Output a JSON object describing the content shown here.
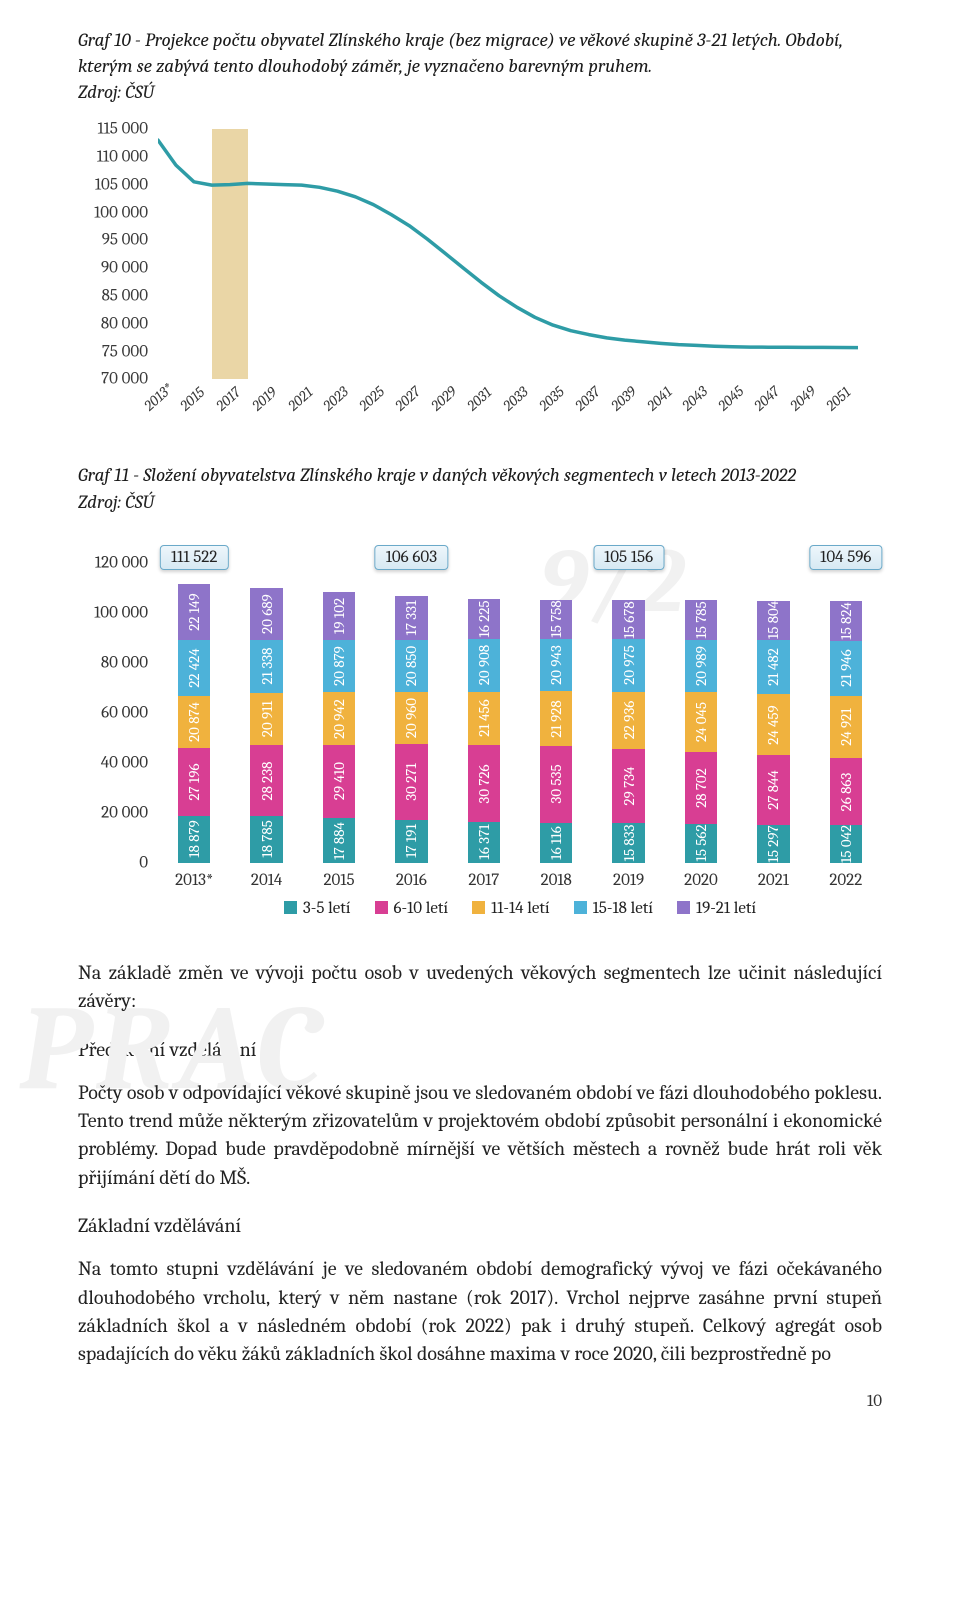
{
  "graf10": {
    "caption": "Graf 10 - Projekce počtu obyvatel Zlínského kraje (bez migrace) ve věkové skupině 3-21 letých. Období, kterým se zabývá tento dlouhodobý záměr, je vyznačeno barevným pruhem.",
    "source": "Zdroj: ČSÚ",
    "type": "line",
    "line_color": "#2e9ca6",
    "line_width": 3.5,
    "highlight_color": "#e6cf97",
    "highlight_range": [
      "2016",
      "2018"
    ],
    "ylim": [
      70000,
      115000
    ],
    "ytick_step": 5000,
    "yticks": [
      "70 000",
      "75 000",
      "80 000",
      "85 000",
      "90 000",
      "95 000",
      "100 000",
      "105 000",
      "110 000",
      "115 000"
    ],
    "xlabels": [
      "2013*",
      "2015",
      "2017",
      "2019",
      "2021",
      "2023",
      "2025",
      "2027",
      "2029",
      "2031",
      "2033",
      "2035",
      "2037",
      "2039",
      "2041",
      "2043",
      "2045",
      "2047",
      "2049",
      "2051"
    ],
    "series": [
      113000,
      108500,
      105500,
      104900,
      105000,
      105200,
      105100,
      105000,
      104900,
      104500,
      103800,
      102800,
      101400,
      99600,
      97600,
      95200,
      92600,
      90000,
      87400,
      85000,
      82900,
      81100,
      79700,
      78700,
      78000,
      77400,
      77000,
      76700,
      76400,
      76200,
      76050,
      75900,
      75800,
      75750,
      75720,
      75700,
      75690,
      75680,
      75670,
      75660
    ]
  },
  "graf11": {
    "caption": "Graf 11 - Složení obyvatelstva Zlínského kraje v daných věkových segmentech v letech 2013-2022",
    "source": "Zdroj: ČSÚ",
    "type": "stacked-bar",
    "ylim": [
      0,
      120000
    ],
    "ytick_step": 20000,
    "yticks": [
      "0",
      "20 000",
      "40 000",
      "60 000",
      "80 000",
      "100 000",
      "120 000"
    ],
    "years": [
      "2013*",
      "2014",
      "2015",
      "2016",
      "2017",
      "2018",
      "2019",
      "2020",
      "2021",
      "2022"
    ],
    "segments": [
      "3-5 letí",
      "6-10 letí",
      "11-14 letí",
      "15-18 letí",
      "19-21 letí"
    ],
    "colors": {
      "3-5 letí": "#2e9ca6",
      "6-10 letí": "#d83e93",
      "11-14 letí": "#f0b23e",
      "15-18 letí": "#4db2d9",
      "19-21 letí": "#8e74c9"
    },
    "bar_width_ratio": 0.45,
    "label_fontsize": 15,
    "data": {
      "2013*": {
        "3-5 letí": 18879,
        "6-10 letí": 27196,
        "11-14 letí": 20874,
        "15-18 letí": 22424,
        "19-21 letí": 22149
      },
      "2014": {
        "3-5 letí": 18785,
        "6-10 letí": 28238,
        "11-14 letí": 20911,
        "15-18 letí": 21338,
        "19-21 letí": 20689
      },
      "2015": {
        "3-5 letí": 17884,
        "6-10 letí": 29410,
        "11-14 letí": 20942,
        "15-18 letí": 20879,
        "19-21 letí": 19102
      },
      "2016": {
        "3-5 letí": 17191,
        "6-10 letí": 30271,
        "11-14 letí": 20960,
        "15-18 letí": 20850,
        "19-21 letí": 17331
      },
      "2017": {
        "3-5 letí": 16371,
        "6-10 letí": 30726,
        "11-14 letí": 21456,
        "15-18 letí": 20908,
        "19-21 letí": 16225
      },
      "2018": {
        "3-5 letí": 16116,
        "6-10 letí": 30535,
        "11-14 letí": 21928,
        "15-18 letí": 20943,
        "19-21 letí": 15758
      },
      "2019": {
        "3-5 letí": 15833,
        "6-10 letí": 29734,
        "11-14 letí": 22936,
        "15-18 letí": 20975,
        "19-21 letí": 15678
      },
      "2020": {
        "3-5 letí": 15562,
        "6-10 letí": 28702,
        "11-14 letí": 24045,
        "15-18 letí": 20989,
        "19-21 letí": 15785
      },
      "2021": {
        "3-5 letí": 15297,
        "6-10 letí": 27844,
        "11-14 letí": 24459,
        "15-18 letí": 21482,
        "19-21 letí": 15804
      },
      "2022": {
        "3-5 letí": 15042,
        "6-10 letí": 26863,
        "11-14 letí": 24921,
        "15-18 letí": 21946,
        "19-21 letí": 15824
      }
    },
    "callouts": [
      {
        "year": "2013*",
        "value": "111 522"
      },
      {
        "year": "2016",
        "value": "106 603"
      },
      {
        "year": "2019",
        "value": "105 156"
      },
      {
        "year": "2022",
        "value": "104 596"
      }
    ]
  },
  "body": {
    "p1": "Na základě změn ve vývoji počtu osob v uvedených věkových segmentech lze učinit následující závěry:",
    "h1": "Předškolní vzdělávání",
    "p2": "Počty osob v odpovídající věkové skupině jsou ve sledovaném období ve fázi dlouhodobého poklesu. Tento trend může některým zřizovatelům v projektovém období způsobit personální i ekonomické problémy. Dopad bude pravděpodobně mírnější ve větších městech a rovněž bude hrát roli věk přijímání dětí do MŠ.",
    "h2": "Základní vzdělávání",
    "p3": "Na tomto stupni vzdělávání je ve sledovaném období demografický vývoj ve fázi očekávaného dlouhodobého vrcholu, který v něm nastane (rok 2017). Vrchol nejprve zasáhne první stupeň základních škol a v následném období (rok 2022) pak i druhý stupeň. Celkový agregát osob spadajících do věku žáků základních škol dosáhne maxima v roce 2020, čili bezprostředně po"
  },
  "page_number": "10"
}
